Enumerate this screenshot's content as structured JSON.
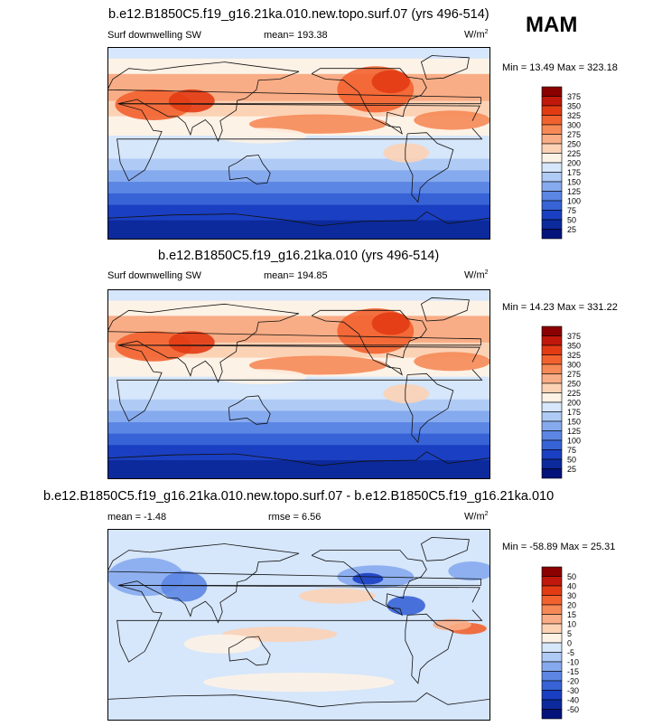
{
  "season": "MAM",
  "chart_data": [
    {
      "type": "heatmap",
      "title": "b.e12.B1850C5.f19_g16.21ka.010.new.topo.surf.07 (yrs 496-514)",
      "variable": "Surf downwelling SW",
      "mean_text": "mean= 193.38",
      "units": {
        "base": "W/m",
        "exp": "2"
      },
      "min_max_text": "Min = 13.49 Max = 323.18",
      "mean": 193.38,
      "min": 13.49,
      "max": 323.18,
      "levels": [
        "375",
        "350",
        "325",
        "300",
        "275",
        "250",
        "225",
        "200",
        "175",
        "150",
        "125",
        "100",
        "75",
        "50",
        "25"
      ],
      "colors": [
        "#8b0000",
        "#c0180c",
        "#e23b14",
        "#f2622f",
        "#f68a57",
        "#f9ad86",
        "#fcd2b5",
        "#fdf2e6",
        "#d6e6fb",
        "#afcbf5",
        "#86aaee",
        "#5c86e4",
        "#3763d6",
        "#1a3fc2",
        "#0c2a9b",
        "#03137a"
      ]
    },
    {
      "type": "heatmap",
      "title": "b.e12.B1850C5.f19_g16.21ka.010 (yrs 496-514)",
      "variable": "Surf downwelling SW",
      "mean_text": "mean= 194.85",
      "units": {
        "base": "W/m",
        "exp": "2"
      },
      "min_max_text": "Min = 14.23 Max = 331.22",
      "mean": 194.85,
      "min": 14.23,
      "max": 331.22,
      "levels": [
        "375",
        "350",
        "325",
        "300",
        "275",
        "250",
        "225",
        "200",
        "175",
        "150",
        "125",
        "100",
        "75",
        "50",
        "25"
      ],
      "colors": [
        "#8b0000",
        "#c0180c",
        "#e23b14",
        "#f2622f",
        "#f68a57",
        "#f9ad86",
        "#fcd2b5",
        "#fdf2e6",
        "#d6e6fb",
        "#afcbf5",
        "#86aaee",
        "#5c86e4",
        "#3763d6",
        "#1a3fc2",
        "#0c2a9b",
        "#03137a"
      ]
    },
    {
      "type": "heatmap",
      "title": "b.e12.B1850C5.f19_g16.21ka.010.new.topo.surf.07 - b.e12.B1850C5.f19_g16.21ka.010",
      "mean_text": "mean = -1.48",
      "rmse_text": "rmse = 6.56",
      "units": {
        "base": "W/m",
        "exp": "2"
      },
      "min_max_text": "Min = -58.89 Max = 25.31",
      "mean": -1.48,
      "rmse": 6.56,
      "min": -58.89,
      "max": 25.31,
      "levels": [
        "50",
        "40",
        "30",
        "20",
        "15",
        "10",
        "5",
        "0",
        "-5",
        "-10",
        "-15",
        "-20",
        "-30",
        "-40",
        "-50"
      ],
      "colors": [
        "#8b0000",
        "#c0180c",
        "#e23b14",
        "#f2622f",
        "#f68a57",
        "#f9ad86",
        "#fcd2b5",
        "#fdf2e6",
        "#d6e6fb",
        "#afcbf5",
        "#86aaee",
        "#5c86e4",
        "#3763d6",
        "#1a3fc2",
        "#0c2a9b",
        "#03137a"
      ]
    }
  ]
}
